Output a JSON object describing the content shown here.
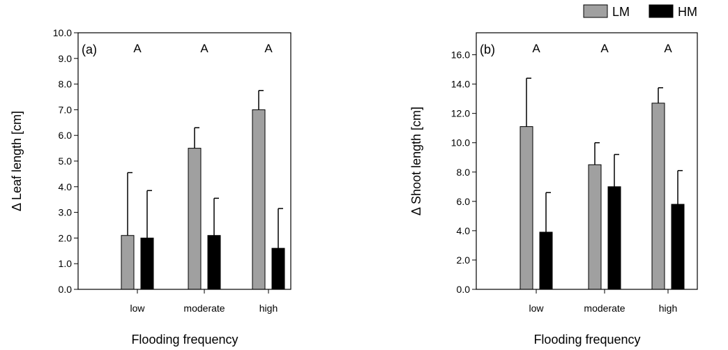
{
  "legend": {
    "placement": "top-right",
    "items": [
      {
        "label": "LM",
        "color": "#a0a0a0"
      },
      {
        "label": "HM",
        "color": "#000000"
      }
    ]
  },
  "chart_data": [
    {
      "type": "bar",
      "panel_label": "(a)",
      "categories": [
        "low",
        "moderate",
        "high"
      ],
      "series": [
        {
          "name": "LM",
          "color": "#a0a0a0",
          "values": [
            2.1,
            5.5,
            7.0
          ],
          "errors": [
            2.45,
            0.8,
            0.75
          ]
        },
        {
          "name": "HM",
          "color": "#000000",
          "values": [
            2.0,
            2.1,
            1.6
          ],
          "errors": [
            1.85,
            1.45,
            1.55
          ]
        }
      ],
      "significance_letters": [
        "A",
        "A",
        "A"
      ],
      "xlabel": "Flooding frequency",
      "ylabel": "Δ Leaf length [cm]",
      "ylim": [
        0,
        10
      ],
      "yticks": [
        "0.0",
        "1.0",
        "2.0",
        "3.0",
        "4.0",
        "5.0",
        "6.0",
        "7.0",
        "8.0",
        "9.0",
        "10.0"
      ],
      "grid": false
    },
    {
      "type": "bar",
      "panel_label": "(b)",
      "categories": [
        "low",
        "moderate",
        "high"
      ],
      "series": [
        {
          "name": "LM",
          "color": "#a0a0a0",
          "values": [
            11.1,
            8.5,
            12.7
          ],
          "errors": [
            3.3,
            1.5,
            1.05
          ]
        },
        {
          "name": "HM",
          "color": "#000000",
          "values": [
            3.9,
            7.0,
            5.8
          ],
          "errors": [
            2.7,
            2.2,
            2.3
          ]
        }
      ],
      "significance_letters": [
        "A",
        "A",
        "A"
      ],
      "xlabel": "Flooding frequency",
      "ylabel": "Δ Shoot length [cm]",
      "ylim": [
        0,
        17.5
      ],
      "yticks": [
        "0.0",
        "2.0",
        "4.0",
        "6.0",
        "8.0",
        "10.0",
        "12.0",
        "14.0",
        "16.0"
      ],
      "grid": false
    }
  ]
}
